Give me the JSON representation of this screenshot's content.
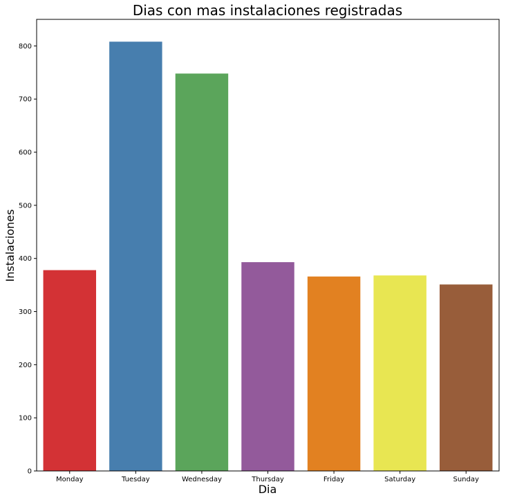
{
  "chart_data": {
    "type": "bar",
    "title": "Dias con mas instalaciones registradas",
    "xlabel": "Dia",
    "ylabel": "Instalaciones",
    "categories": [
      "Monday",
      "Tuesday",
      "Wednesday",
      "Thursday",
      "Friday",
      "Saturday",
      "Sunday"
    ],
    "values": [
      378,
      808,
      748,
      393,
      366,
      368,
      351
    ],
    "colors": [
      "#d33235",
      "#477eae",
      "#5ba55b",
      "#935a9b",
      "#e28121",
      "#e8e652",
      "#985d3a"
    ],
    "ylim": [
      0,
      850
    ],
    "yticks": [
      0,
      100,
      200,
      300,
      400,
      500,
      600,
      700,
      800
    ],
    "grid": false,
    "legend": "none"
  }
}
